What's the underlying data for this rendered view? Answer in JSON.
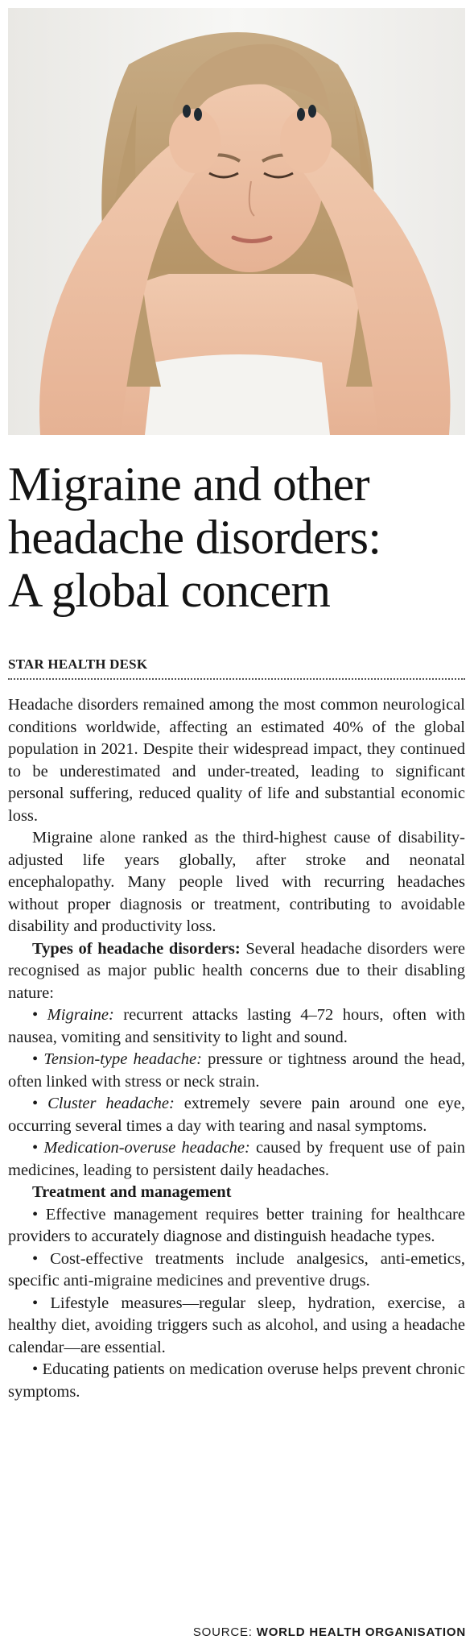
{
  "photo": {
    "subject": "woman-with-headache-photo"
  },
  "headline": {
    "line1": "Migraine and other",
    "line2": "headache disorders:",
    "line3": "A global concern"
  },
  "byline": "STAR HEALTH DESK",
  "body": {
    "p1": "Headache disorders remained among the most common neurological conditions worldwide, affecting an estimated 40% of the global population in 2021. Despite their widespread impact, they continued to be underestimated and under-treated, leading to significant personal suffering, reduced quality of life and substantial economic loss.",
    "p2": "Migraine alone ranked as the third-highest cause of disability-adjusted life years globally, after stroke and neonatal encephalopathy. Many people lived with recurring headaches without proper diagnosis or treatment, contributing to avoidable disability and productivity loss.",
    "types_heading": "Types of headache disorders:",
    "types_intro": " Several headache disorders were recognised as major public health concerns due to their disabling nature:",
    "types": [
      {
        "bullet": "• ",
        "term": "Migraine:",
        "text": " recurrent attacks lasting 4–72 hours, often with nausea, vomiting and sensitivity to light and sound."
      },
      {
        "bullet": "• ",
        "term": "Tension-type headache:",
        "text": " pressure or tightness around the head, often linked with stress or neck strain."
      },
      {
        "bullet": "• ",
        "term": "Cluster headache:",
        "text": " extremely severe pain around one eye, occurring several times a day with tearing and nasal symptoms."
      },
      {
        "bullet": "• ",
        "term": "Medication-overuse headache:",
        "text": " caused by frequent use of pain medicines, leading to persistent daily headaches."
      }
    ],
    "treatment_heading": "Treatment and management",
    "treatment": [
      "• Effective management requires better training for healthcare providers to accurately diagnose and distinguish headache types.",
      "• Cost-effective treatments include analgesics, anti-emetics, specific anti-migraine medicines and preventive drugs.",
      "• Lifestyle measures—regular sleep, hydration, exercise, a healthy diet, avoiding triggers such as alcohol, and using a headache calendar—are essential.",
      "• Educating patients on medication overuse helps prevent chronic symptoms."
    ]
  },
  "source": {
    "label": "SOURCE: ",
    "org": "WORLD HEALTH ORGANISATION"
  }
}
